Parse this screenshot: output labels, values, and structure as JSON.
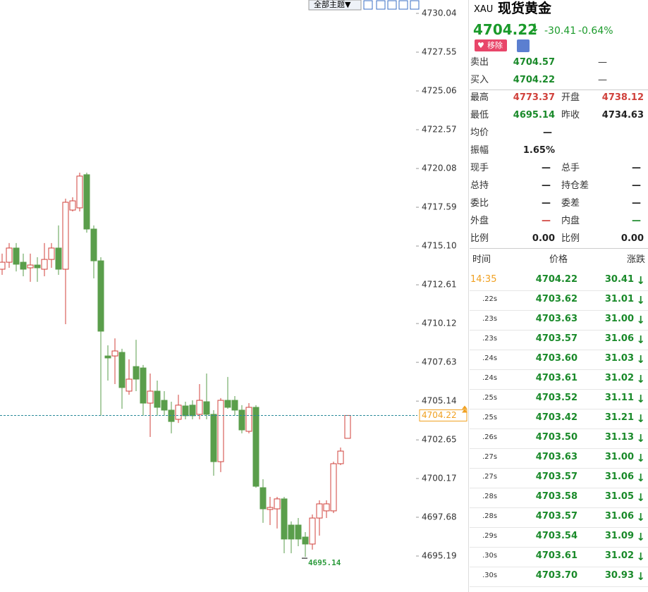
{
  "chart_data": {
    "type": "candlestick",
    "open": [
      4713.61,
      4714.06,
      4714.97,
      4714.06,
      4713.7,
      4713.88,
      4713.61,
      4714.24,
      4714.97,
      4713.61,
      4717.41,
      4717.55,
      4719.68,
      4716.19,
      4714.15,
      4708.04,
      4708.04,
      4708.27,
      4705.78,
      4707.36,
      4707.27,
      4705.01,
      4705.78,
      4705.19,
      4704.56,
      4703.97,
      4704.83,
      4704.88,
      4704.29,
      4705.1,
      4704.29,
      4701.25,
      4705.19,
      4705.19,
      4704.56,
      4703.2,
      4704.74,
      4699.58,
      4698.18,
      4698.22,
      4698.86,
      4697.18,
      4697.18,
      4696.41,
      4695.96,
      4697.63,
      4698.09,
      4698.09,
      4701.12,
      4702.75
    ],
    "high": [
      4714.61,
      4715.29,
      4715.29,
      4714.61,
      4714.61,
      4714.38,
      4715.29,
      4715.29,
      4716.42,
      4718.14,
      4718.23,
      4719.81,
      4719.81,
      4716.42,
      4714.38,
      4708.72,
      4709.17,
      4708.5,
      4707.82,
      4709.08,
      4707.46,
      4706.91,
      4706.46,
      4705.78,
      4705.1,
      4705.55,
      4705.1,
      4705.19,
      4706.23,
      4706.91,
      4704.56,
      4705.33,
      4706.69,
      4705.46,
      4704.88,
      4705.01,
      4704.88,
      4700.12,
      4698.99,
      4698.99,
      4698.99,
      4697.41,
      4697.63,
      4696.73,
      4697.86,
      4698.77,
      4698.77,
      4701.25,
      4702.16,
      4704.22
    ],
    "low": [
      4713.25,
      4713.7,
      4713.47,
      4713.16,
      4712.8,
      4712.8,
      4713.16,
      4713.7,
      4713.25,
      4710.08,
      4717.32,
      4717.32,
      4715.96,
      4713.02,
      4704.2,
      4706.46,
      4706.23,
      4704.65,
      4705.55,
      4705.78,
      4704.2,
      4702.84,
      4704.2,
      4704.2,
      4703.07,
      4703.74,
      4703.97,
      4703.97,
      4703.97,
      4703.97,
      4700.35,
      4700.58,
      4704.65,
      4704.2,
      4703.07,
      4703.07,
      4699.58,
      4697.32,
      4697.18,
      4696.96,
      4695.37,
      4695.37,
      4695.82,
      4695.14,
      4695.6,
      4696.5,
      4697.63,
      4697.95,
      4701.03,
      4702.75
    ],
    "close": [
      4714.06,
      4714.97,
      4713.93,
      4713.61,
      4713.88,
      4713.7,
      4714.24,
      4714.97,
      4713.61,
      4717.91,
      4718.0,
      4719.59,
      4716.19,
      4714.15,
      4709.63,
      4707.91,
      4708.36,
      4706.01,
      4706.55,
      4706.55,
      4705.01,
      4705.78,
      4704.74,
      4704.56,
      4703.83,
      4704.88,
      4704.2,
      4704.2,
      4705.19,
      4704.29,
      4701.25,
      4705.19,
      4704.74,
      4704.56,
      4703.29,
      4704.74,
      4699.67,
      4698.22,
      4698.31,
      4698.86,
      4696.28,
      4696.28,
      4696.28,
      4695.96,
      4697.63,
      4698.54,
      4698.54,
      4701.12,
      4701.93,
      4704.22
    ],
    "up_color": "#d0413b",
    "down_color": "#5a9e4b",
    "ylim": [
      4692.88,
      4730.9
    ],
    "yticks": [
      4730.04,
      4727.55,
      4725.06,
      4722.57,
      {
        "value": 4720.08,
        "label": "4720.08"
      },
      4717.59,
      {
        "value": 4715.1,
        "label": "4715.10"
      },
      4712.61,
      4710.12,
      4707.63,
      4705.14,
      4702.65,
      4700.17,
      4697.68,
      4695.19
    ],
    "last_price": 4704.22,
    "low_annotation": 4695.14
  },
  "toolbar": {
    "theme_button": "全部主题▼"
  },
  "quote": {
    "symbol": "XAU",
    "name": "现货黄金",
    "price": "4704.22",
    "change": "-30.41",
    "change_pct": "-0.64%",
    "remove_button": "移除",
    "rows": [
      [
        "卖出",
        "4704.57",
        "—"
      ],
      [
        "买入",
        "4704.22",
        "—"
      ],
      [
        "最高",
        "4773.37",
        "开盘",
        "4738.12"
      ],
      [
        "最低",
        "4695.14",
        "昨收",
        "4734.63"
      ],
      [
        "均价",
        "—"
      ],
      [
        "振幅",
        "1.65%"
      ],
      [
        "现手",
        "—",
        "总手",
        "—"
      ],
      [
        "总持",
        "—",
        "持仓差",
        "—"
      ],
      [
        "委比",
        "—",
        "委差",
        "—"
      ],
      [
        "外盘",
        "—",
        "内盘",
        "—"
      ],
      [
        "比例",
        "0.00",
        "比例",
        "0.00"
      ]
    ]
  },
  "trades": {
    "headers": [
      "时间",
      "价格",
      "涨跌"
    ],
    "rows": [
      [
        "14:35",
        "4704.22",
        "30.41"
      ],
      [
        ".22s",
        "4703.62",
        "31.01"
      ],
      [
        ".23s",
        "4703.63",
        "31.00"
      ],
      [
        ".23s",
        "4703.57",
        "31.06"
      ],
      [
        ".24s",
        "4703.60",
        "31.03"
      ],
      [
        ".24s",
        "4703.61",
        "31.02"
      ],
      [
        ".25s",
        "4703.52",
        "31.11"
      ],
      [
        ".25s",
        "4703.42",
        "31.21"
      ],
      [
        ".26s",
        "4703.50",
        "31.13"
      ],
      [
        ".27s",
        "4703.63",
        "31.00"
      ],
      [
        ".27s",
        "4703.57",
        "31.06"
      ],
      [
        ".28s",
        "4703.58",
        "31.05"
      ],
      [
        ".28s",
        "4703.57",
        "31.06"
      ],
      [
        ".29s",
        "4703.54",
        "31.09"
      ],
      [
        ".30s",
        "4703.61",
        "31.02"
      ],
      [
        ".30s",
        "4703.70",
        "30.93"
      ]
    ]
  }
}
